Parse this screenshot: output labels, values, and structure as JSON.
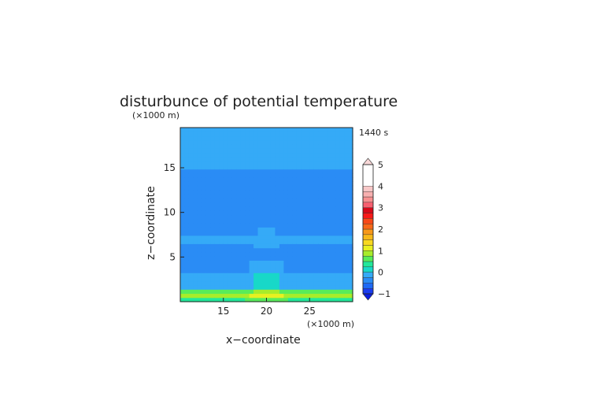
{
  "chart_data": {
    "type": "heatmap",
    "title": "disturbunce of potential temperature",
    "time_label": "1440 s",
    "xlabel": "x−coordinate",
    "ylabel": "z−coordinate",
    "x_unit": "(×1000 m)",
    "y_unit": "(×1000 m)",
    "xlim": [
      10,
      30
    ],
    "ylim": [
      0,
      19.5
    ],
    "xticks": [
      15,
      20,
      25
    ],
    "yticks": [
      5,
      10,
      15
    ],
    "colorbar": {
      "levels": [
        -1,
        -0.75,
        -0.5,
        -0.25,
        0,
        0.25,
        0.5,
        0.75,
        1,
        1.25,
        1.5,
        1.75,
        2,
        2.25,
        2.5,
        2.75,
        3,
        3.25,
        3.5,
        3.75,
        4,
        4.25,
        4.5,
        4.75,
        5
      ],
      "tick_labels": [
        "5",
        "4",
        "3",
        "2",
        "1",
        "0",
        "−1"
      ],
      "tick_values": [
        5,
        4,
        3,
        2,
        1,
        0,
        -1
      ],
      "colors": [
        "#1a3cf0",
        "#1e6af5",
        "#2a8cf5",
        "#35aaf7",
        "#18d8c8",
        "#20e89a",
        "#58ec5a",
        "#a8ec2a",
        "#e8f020",
        "#f8d820",
        "#f8b818",
        "#f89818",
        "#f86818",
        "#f84818",
        "#f81818",
        "#d80818",
        "#f86070",
        "#f89090",
        "#f8b0b0",
        "#f8c8c8"
      ],
      "under_color": "#0a1ee0",
      "over_color": "#f8d8d8"
    },
    "field": {
      "description_bands": [
        {
          "z": [
            0,
            0.3
          ],
          "value": 0.4
        },
        {
          "z": [
            0.3,
            0.7
          ],
          "value": 0.85
        },
        {
          "z": [
            0.7,
            1.3
          ],
          "value": 0.55
        },
        {
          "z": [
            1.3,
            3.2
          ],
          "value": -0.15
        },
        {
          "z": [
            3.2,
            6.5
          ],
          "value": -0.35
        },
        {
          "z": [
            6.5,
            7.5
          ],
          "value": -0.2
        },
        {
          "z": [
            7.5,
            15.0
          ],
          "value": -0.4
        },
        {
          "z": [
            15.0,
            19.5
          ],
          "value": -0.2
        }
      ]
    }
  }
}
